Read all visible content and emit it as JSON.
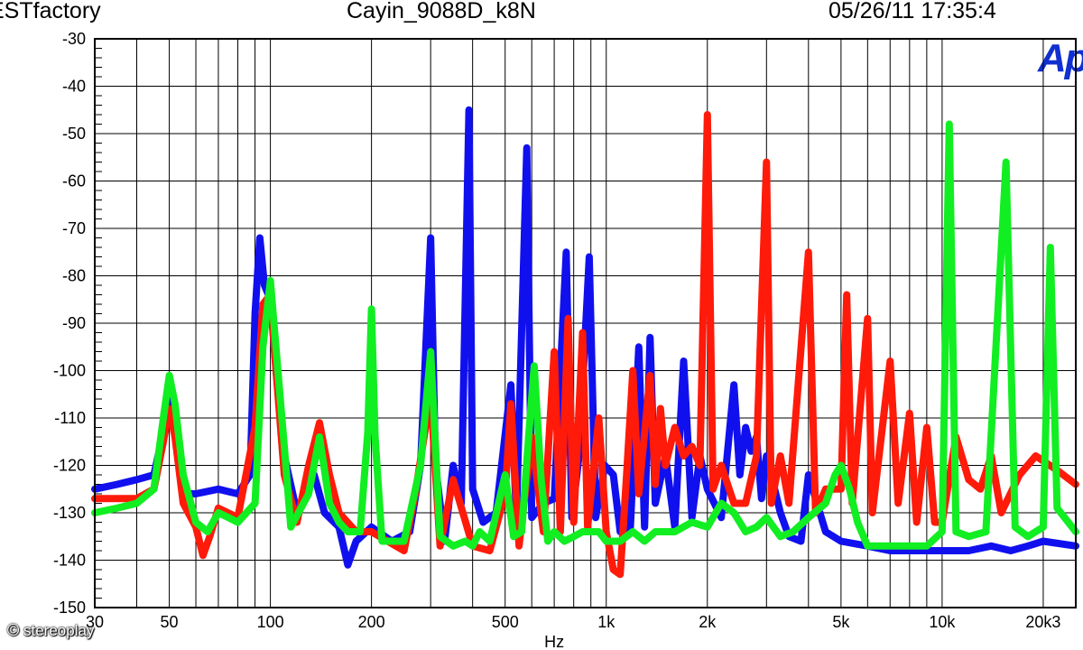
{
  "header": {
    "left": "ESTfactory",
    "center": "Cayin_9088D_k8N",
    "right": "05/26/11 17:35:4"
  },
  "logo": "Ap",
  "credit": "stereoplay",
  "colors": {
    "blue": "#1010ee",
    "red": "#ff1a0a",
    "green": "#11ee22",
    "grid": "#000000"
  },
  "chart_data": {
    "type": "line",
    "title": "",
    "xlabel": "Hz",
    "ylabel": "",
    "x_scale": "log",
    "xlim": [
      30,
      25000
    ],
    "ylim": [
      -150,
      -30
    ],
    "grid": true,
    "legend": "none",
    "xticks": [
      {
        "value": 30,
        "label": "30"
      },
      {
        "value": 50,
        "label": "50"
      },
      {
        "value": 100,
        "label": "100"
      },
      {
        "value": 200,
        "label": "200"
      },
      {
        "value": 500,
        "label": "500"
      },
      {
        "value": 1000,
        "label": "1k"
      },
      {
        "value": 2000,
        "label": "2k"
      },
      {
        "value": 5000,
        "label": "5k"
      },
      {
        "value": 10000,
        "label": "10k"
      },
      {
        "value": 20000,
        "label": "20k3"
      }
    ],
    "yticks": [
      -30,
      -40,
      -50,
      -60,
      -70,
      -80,
      -90,
      -100,
      -110,
      -120,
      -130,
      -140,
      -150
    ],
    "series": [
      {
        "color": "#1010ee",
        "points": [
          [
            30,
            -125
          ],
          [
            35,
            -124
          ],
          [
            40,
            -123
          ],
          [
            45,
            -122
          ],
          [
            48,
            -113
          ],
          [
            50,
            -106
          ],
          [
            52,
            -113
          ],
          [
            55,
            -126
          ],
          [
            60,
            -126
          ],
          [
            70,
            -125
          ],
          [
            80,
            -126
          ],
          [
            87,
            -122
          ],
          [
            90,
            -88
          ],
          [
            93,
            -72
          ],
          [
            96,
            -82
          ],
          [
            100,
            -85
          ],
          [
            104,
            -100
          ],
          [
            110,
            -118
          ],
          [
            120,
            -130
          ],
          [
            135,
            -122
          ],
          [
            145,
            -130
          ],
          [
            160,
            -133
          ],
          [
            170,
            -141
          ],
          [
            180,
            -136
          ],
          [
            200,
            -133
          ],
          [
            230,
            -136
          ],
          [
            260,
            -134
          ],
          [
            280,
            -120
          ],
          [
            300,
            -72
          ],
          [
            310,
            -120
          ],
          [
            330,
            -136
          ],
          [
            350,
            -120
          ],
          [
            370,
            -128
          ],
          [
            390,
            -45
          ],
          [
            400,
            -125
          ],
          [
            430,
            -132
          ],
          [
            470,
            -130
          ],
          [
            520,
            -103
          ],
          [
            540,
            -131
          ],
          [
            580,
            -53
          ],
          [
            600,
            -131
          ],
          [
            650,
            -128
          ],
          [
            700,
            -127
          ],
          [
            760,
            -75
          ],
          [
            790,
            -131
          ],
          [
            830,
            -118
          ],
          [
            890,
            -76
          ],
          [
            930,
            -131
          ],
          [
            990,
            -120
          ],
          [
            1050,
            -122
          ],
          [
            1100,
            -134
          ],
          [
            1180,
            -133
          ],
          [
            1250,
            -95
          ],
          [
            1300,
            -133
          ],
          [
            1350,
            -93
          ],
          [
            1400,
            -128
          ],
          [
            1500,
            -118
          ],
          [
            1600,
            -133
          ],
          [
            1700,
            -98
          ],
          [
            1800,
            -131
          ],
          [
            1900,
            -118
          ],
          [
            2000,
            -125
          ],
          [
            2200,
            -131
          ],
          [
            2400,
            -103
          ],
          [
            2500,
            -122
          ],
          [
            2600,
            -112
          ],
          [
            2700,
            -117
          ],
          [
            2800,
            -114
          ],
          [
            2900,
            -127
          ],
          [
            3000,
            -118
          ],
          [
            3300,
            -130
          ],
          [
            3500,
            -135
          ],
          [
            3800,
            -136
          ],
          [
            4000,
            -122
          ],
          [
            4500,
            -134
          ],
          [
            5000,
            -136
          ],
          [
            6000,
            -137
          ],
          [
            7000,
            -138
          ],
          [
            8000,
            -138
          ],
          [
            9000,
            -138
          ],
          [
            10000,
            -138
          ],
          [
            12000,
            -138
          ],
          [
            14000,
            -137
          ],
          [
            16000,
            -138
          ],
          [
            18000,
            -137
          ],
          [
            20000,
            -136
          ],
          [
            25000,
            -137
          ]
        ]
      },
      {
        "color": "#ff1a0a",
        "points": [
          [
            30,
            -127
          ],
          [
            40,
            -127
          ],
          [
            45,
            -125
          ],
          [
            48,
            -115
          ],
          [
            50,
            -108
          ],
          [
            52,
            -114
          ],
          [
            55,
            -128
          ],
          [
            60,
            -133
          ],
          [
            63,
            -139
          ],
          [
            66,
            -135
          ],
          [
            70,
            -129
          ],
          [
            80,
            -131
          ],
          [
            90,
            -112
          ],
          [
            95,
            -86
          ],
          [
            100,
            -84
          ],
          [
            104,
            -100
          ],
          [
            110,
            -122
          ],
          [
            120,
            -132
          ],
          [
            130,
            -120
          ],
          [
            140,
            -111
          ],
          [
            150,
            -122
          ],
          [
            160,
            -130
          ],
          [
            180,
            -134
          ],
          [
            200,
            -134
          ],
          [
            250,
            -138
          ],
          [
            270,
            -126
          ],
          [
            300,
            -105
          ],
          [
            320,
            -137
          ],
          [
            350,
            -123
          ],
          [
            400,
            -137
          ],
          [
            450,
            -138
          ],
          [
            500,
            -126
          ],
          [
            520,
            -107
          ],
          [
            550,
            -137
          ],
          [
            600,
            -114
          ],
          [
            650,
            -134
          ],
          [
            700,
            -96
          ],
          [
            730,
            -134
          ],
          [
            770,
            -89
          ],
          [
            800,
            -132
          ],
          [
            850,
            -92
          ],
          [
            880,
            -133
          ],
          [
            950,
            -110
          ],
          [
            1000,
            -134
          ],
          [
            1050,
            -142
          ],
          [
            1100,
            -143
          ],
          [
            1150,
            -122
          ],
          [
            1200,
            -100
          ],
          [
            1250,
            -126
          ],
          [
            1350,
            -101
          ],
          [
            1400,
            -124
          ],
          [
            1450,
            -108
          ],
          [
            1500,
            -120
          ],
          [
            1600,
            -112
          ],
          [
            1700,
            -118
          ],
          [
            1800,
            -116
          ],
          [
            1900,
            -120
          ],
          [
            2000,
            -46
          ],
          [
            2080,
            -125
          ],
          [
            2200,
            -120
          ],
          [
            2400,
            -128
          ],
          [
            2600,
            -128
          ],
          [
            2800,
            -118
          ],
          [
            3000,
            -56
          ],
          [
            3100,
            -128
          ],
          [
            3300,
            -118
          ],
          [
            3500,
            -128
          ],
          [
            4000,
            -75
          ],
          [
            4200,
            -130
          ],
          [
            4500,
            -125
          ],
          [
            5000,
            -125
          ],
          [
            5200,
            -84
          ],
          [
            5400,
            -128
          ],
          [
            6000,
            -89
          ],
          [
            6200,
            -130
          ],
          [
            7000,
            -98
          ],
          [
            7400,
            -128
          ],
          [
            8000,
            -109
          ],
          [
            8400,
            -132
          ],
          [
            9000,
            -112
          ],
          [
            9500,
            -132
          ],
          [
            10000,
            -132
          ],
          [
            11000,
            -114
          ],
          [
            12000,
            -123
          ],
          [
            13000,
            -125
          ],
          [
            14000,
            -118
          ],
          [
            15000,
            -130
          ],
          [
            17000,
            -122
          ],
          [
            19000,
            -118
          ],
          [
            22000,
            -121
          ],
          [
            25000,
            -124
          ]
        ]
      },
      {
        "color": "#11ee22",
        "points": [
          [
            30,
            -130
          ],
          [
            35,
            -129
          ],
          [
            40,
            -128
          ],
          [
            45,
            -125
          ],
          [
            48,
            -110
          ],
          [
            50,
            -101
          ],
          [
            52,
            -107
          ],
          [
            55,
            -122
          ],
          [
            60,
            -132
          ],
          [
            65,
            -134
          ],
          [
            70,
            -130
          ],
          [
            75,
            -131
          ],
          [
            80,
            -132
          ],
          [
            90,
            -128
          ],
          [
            95,
            -95
          ],
          [
            100,
            -81
          ],
          [
            103,
            -92
          ],
          [
            110,
            -116
          ],
          [
            115,
            -133
          ],
          [
            130,
            -126
          ],
          [
            140,
            -114
          ],
          [
            150,
            -128
          ],
          [
            160,
            -132
          ],
          [
            170,
            -134
          ],
          [
            185,
            -134
          ],
          [
            195,
            -113
          ],
          [
            200,
            -87
          ],
          [
            205,
            -114
          ],
          [
            215,
            -136
          ],
          [
            250,
            -136
          ],
          [
            280,
            -120
          ],
          [
            300,
            -96
          ],
          [
            320,
            -135
          ],
          [
            350,
            -137
          ],
          [
            380,
            -136
          ],
          [
            400,
            -137
          ],
          [
            420,
            -134
          ],
          [
            450,
            -136
          ],
          [
            500,
            -122
          ],
          [
            530,
            -135
          ],
          [
            560,
            -134
          ],
          [
            590,
            -112
          ],
          [
            610,
            -99
          ],
          [
            640,
            -123
          ],
          [
            670,
            -136
          ],
          [
            700,
            -134
          ],
          [
            750,
            -136
          ],
          [
            800,
            -135
          ],
          [
            850,
            -134
          ],
          [
            900,
            -134
          ],
          [
            950,
            -134
          ],
          [
            1000,
            -136
          ],
          [
            1100,
            -136
          ],
          [
            1200,
            -134
          ],
          [
            1300,
            -136
          ],
          [
            1400,
            -134
          ],
          [
            1600,
            -134
          ],
          [
            1800,
            -132
          ],
          [
            2000,
            -133
          ],
          [
            2200,
            -128
          ],
          [
            2400,
            -130
          ],
          [
            2600,
            -134
          ],
          [
            2800,
            -133
          ],
          [
            3000,
            -131
          ],
          [
            3300,
            -135
          ],
          [
            3600,
            -134
          ],
          [
            4000,
            -131
          ],
          [
            4500,
            -128
          ],
          [
            4800,
            -122
          ],
          [
            5000,
            -120
          ],
          [
            5300,
            -125
          ],
          [
            5600,
            -132
          ],
          [
            6000,
            -137
          ],
          [
            7000,
            -137
          ],
          [
            8000,
            -137
          ],
          [
            9000,
            -137
          ],
          [
            10000,
            -134
          ],
          [
            10500,
            -48
          ],
          [
            11000,
            -134
          ],
          [
            12000,
            -135
          ],
          [
            13500,
            -134
          ],
          [
            15500,
            -56
          ],
          [
            16500,
            -133
          ],
          [
            18000,
            -135
          ],
          [
            20000,
            -133
          ],
          [
            21000,
            -74
          ],
          [
            22000,
            -129
          ],
          [
            25000,
            -134
          ]
        ]
      }
    ]
  }
}
